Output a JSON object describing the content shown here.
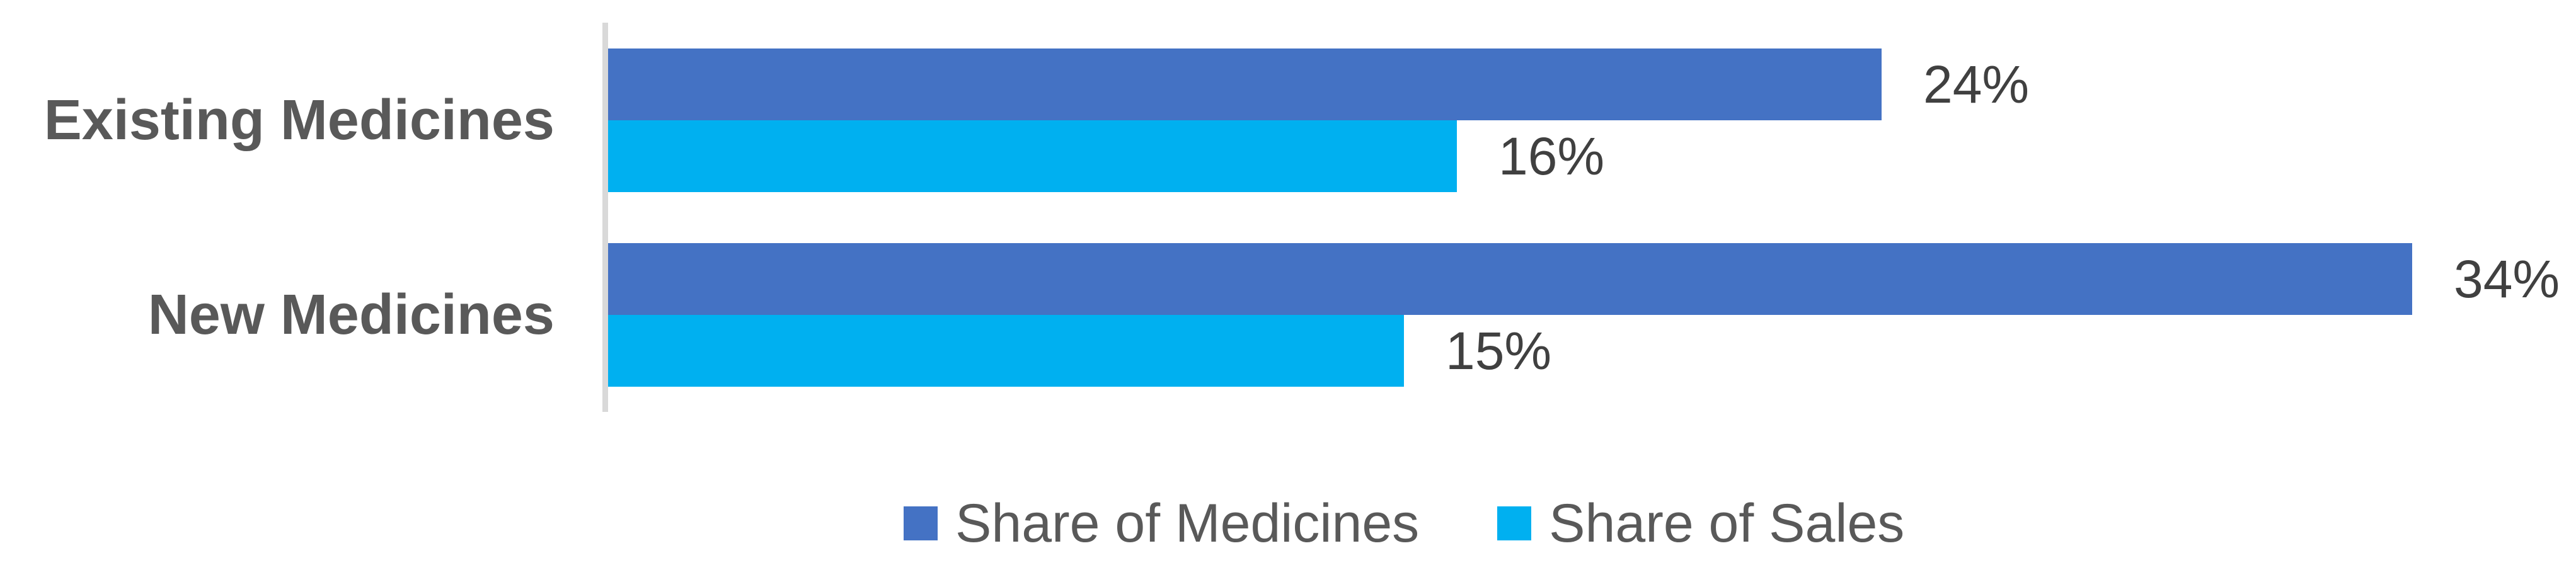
{
  "chart_data": {
    "type": "bar",
    "orientation": "horizontal",
    "title": "",
    "xlabel": "",
    "ylabel": "",
    "categories": [
      "Existing Medicines",
      "New Medicines"
    ],
    "series": [
      {
        "name": "Share of Medicines",
        "color": "#4472C4",
        "values": [
          24,
          34
        ],
        "data_labels": [
          "24%",
          "34%"
        ]
      },
      {
        "name": "Share of Sales",
        "color": "#00B0F0",
        "values": [
          16,
          15
        ],
        "data_labels": [
          "16%",
          "15%"
        ]
      }
    ],
    "xlim": [
      0,
      37
    ],
    "grid": false,
    "axis_line_color": "#D9D9D9",
    "legend_position": "bottom-center"
  },
  "colors": {
    "background": "#FFFFFF",
    "category_label": "#595959",
    "data_label": "#404040",
    "legend_label": "#595959"
  }
}
